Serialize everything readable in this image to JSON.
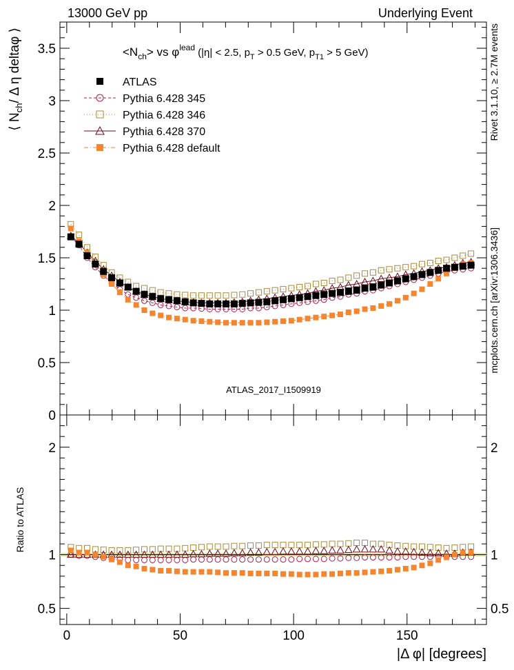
{
  "header": {
    "left": "13000 GeV pp",
    "right": "Underlying Event"
  },
  "side": {
    "rivet": "Rivet 3.1.10, ≥ 2.7M events",
    "mcplots": "mcplots.cern.ch [arXiv:1306.3436]"
  },
  "watermark": "ATLAS_2017_I1509919",
  "chart_data": [
    {
      "type": "scatter",
      "title": "<N_ch> vs φ^lead (|η| < 2.5, p_T > 0.5 GeV, p_T1 > 5 GeV)",
      "title_parts": {
        "a": "<N",
        "a_sub": "ch",
        "b": "> vs φ",
        "b_sup": "lead",
        "c": " (|η| < 2.5, p",
        "c_sub": "T",
        "d": " > 0.5 GeV, p",
        "d_sub": "T1",
        "e": " > 5 GeV)"
      },
      "ylabel": "⟨ N_ch / Δ η deltaφ ⟩",
      "ylabel_parts": {
        "a": "⟨ N",
        "a_sub": "ch",
        "b": "/ Δ η deltaφ ⟩"
      },
      "xlim": [
        -3,
        185
      ],
      "ylim": [
        0,
        3.75
      ],
      "y_ticks": [
        "0",
        "0.5",
        "1",
        "1.5",
        "2",
        "2.5",
        "3",
        "3.5"
      ],
      "y_tick_values": [
        0,
        0.5,
        1,
        1.5,
        2,
        2.5,
        3,
        3.5
      ],
      "legend_position": "top-left",
      "x": [
        1.8,
        5.4,
        9.0,
        12.6,
        16.2,
        19.8,
        23.4,
        27.0,
        30.6,
        34.2,
        37.8,
        41.4,
        45.0,
        48.6,
        52.2,
        55.8,
        59.4,
        63.0,
        66.6,
        70.2,
        73.8,
        77.4,
        81.0,
        84.6,
        88.2,
        91.8,
        95.4,
        99.0,
        102.6,
        106.2,
        109.8,
        113.4,
        117.0,
        120.6,
        124.2,
        127.8,
        131.4,
        135.0,
        138.6,
        142.2,
        145.8,
        149.4,
        153.0,
        156.6,
        160.2,
        163.8,
        167.4,
        171.0,
        174.6,
        178.2
      ],
      "series": [
        {
          "name": "ATLAS",
          "color": "#000000",
          "marker": "filled-square",
          "values": [
            1.7,
            1.63,
            1.52,
            1.44,
            1.37,
            1.31,
            1.26,
            1.22,
            1.18,
            1.15,
            1.13,
            1.11,
            1.1,
            1.09,
            1.08,
            1.07,
            1.065,
            1.06,
            1.06,
            1.06,
            1.06,
            1.065,
            1.07,
            1.075,
            1.08,
            1.09,
            1.1,
            1.11,
            1.12,
            1.13,
            1.14,
            1.15,
            1.16,
            1.17,
            1.18,
            1.19,
            1.21,
            1.22,
            1.24,
            1.26,
            1.28,
            1.3,
            1.32,
            1.34,
            1.36,
            1.38,
            1.4,
            1.41,
            1.42,
            1.43
          ]
        },
        {
          "name": "Pythia 6.428 345",
          "color": "#b41e4a",
          "marker": "open-circle",
          "line": "dashed",
          "values": [
            1.7,
            1.62,
            1.5,
            1.41,
            1.33,
            1.26,
            1.2,
            1.15,
            1.12,
            1.09,
            1.07,
            1.05,
            1.04,
            1.03,
            1.02,
            1.02,
            1.015,
            1.01,
            1.01,
            1.01,
            1.01,
            1.01,
            1.02,
            1.02,
            1.03,
            1.04,
            1.05,
            1.06,
            1.07,
            1.08,
            1.09,
            1.1,
            1.12,
            1.13,
            1.15,
            1.16,
            1.18,
            1.19,
            1.21,
            1.23,
            1.25,
            1.27,
            1.29,
            1.31,
            1.33,
            1.35,
            1.37,
            1.38,
            1.39,
            1.4
          ]
        },
        {
          "name": "Pythia 6.428 346",
          "color": "#a88a3c",
          "marker": "open-square",
          "line": "dotted",
          "values": [
            1.82,
            1.72,
            1.6,
            1.51,
            1.43,
            1.36,
            1.31,
            1.27,
            1.23,
            1.21,
            1.19,
            1.17,
            1.16,
            1.15,
            1.145,
            1.14,
            1.14,
            1.14,
            1.14,
            1.14,
            1.145,
            1.15,
            1.16,
            1.17,
            1.18,
            1.19,
            1.2,
            1.21,
            1.22,
            1.23,
            1.25,
            1.26,
            1.28,
            1.29,
            1.31,
            1.33,
            1.35,
            1.36,
            1.38,
            1.39,
            1.4,
            1.41,
            1.42,
            1.44,
            1.45,
            1.47,
            1.48,
            1.5,
            1.52,
            1.54
          ]
        },
        {
          "name": "Pythia 6.428 370",
          "color": "#6e0a1e",
          "marker": "open-triangle",
          "line": "solid",
          "values": [
            1.71,
            1.64,
            1.55,
            1.47,
            1.39,
            1.33,
            1.27,
            1.22,
            1.18,
            1.15,
            1.13,
            1.11,
            1.1,
            1.09,
            1.08,
            1.075,
            1.07,
            1.07,
            1.07,
            1.07,
            1.075,
            1.08,
            1.09,
            1.1,
            1.11,
            1.12,
            1.13,
            1.14,
            1.15,
            1.16,
            1.18,
            1.19,
            1.21,
            1.22,
            1.24,
            1.25,
            1.27,
            1.28,
            1.3,
            1.31,
            1.32,
            1.34,
            1.35,
            1.37,
            1.38,
            1.4,
            1.41,
            1.43,
            1.45,
            1.46
          ]
        },
        {
          "name": "Pythia 6.428 default",
          "color": "#f58630",
          "marker": "filled-square",
          "line": "dash-dot",
          "values": [
            1.78,
            1.66,
            1.55,
            1.44,
            1.34,
            1.25,
            1.17,
            1.1,
            1.05,
            1.0,
            0.97,
            0.95,
            0.93,
            0.92,
            0.91,
            0.9,
            0.895,
            0.89,
            0.885,
            0.88,
            0.88,
            0.88,
            0.88,
            0.88,
            0.885,
            0.89,
            0.895,
            0.9,
            0.91,
            0.92,
            0.93,
            0.94,
            0.95,
            0.96,
            0.98,
            0.99,
            1.01,
            1.02,
            1.04,
            1.06,
            1.09,
            1.12,
            1.16,
            1.2,
            1.25,
            1.3,
            1.35,
            1.4,
            1.44,
            1.45
          ]
        }
      ]
    },
    {
      "type": "scatter",
      "title": "",
      "xlabel": "|Δ φ| [degrees]",
      "ylabel": "Ratio to ATLAS",
      "xlim": [
        -3,
        185
      ],
      "ylim": [
        0.35,
        2.3
      ],
      "x_ticks": [
        "0",
        "50",
        "100",
        "150"
      ],
      "x_tick_values": [
        0,
        50,
        100,
        150
      ],
      "y_ticks": [
        "0.5",
        "1",
        "2"
      ],
      "y_tick_values": [
        0.5,
        1,
        2
      ],
      "band": {
        "low": 0.985,
        "high": 1.015,
        "color": "#e0e0a0"
      },
      "series": [
        {
          "name": "Pythia 6.428 345",
          "color": "#b41e4a",
          "marker": "open-circle",
          "values": [
            1.0,
            0.99,
            0.99,
            0.98,
            0.97,
            0.96,
            0.955,
            0.95,
            0.95,
            0.95,
            0.95,
            0.95,
            0.95,
            0.95,
            0.95,
            0.955,
            0.955,
            0.955,
            0.955,
            0.955,
            0.955,
            0.955,
            0.955,
            0.955,
            0.955,
            0.955,
            0.955,
            0.955,
            0.96,
            0.96,
            0.96,
            0.96,
            0.965,
            0.965,
            0.97,
            0.97,
            0.975,
            0.975,
            0.975,
            0.975,
            0.975,
            0.98,
            0.98,
            0.98,
            0.98,
            0.98,
            0.98,
            0.98,
            0.98,
            0.98
          ]
        },
        {
          "name": "Pythia 6.428 346",
          "color": "#a88a3c",
          "marker": "open-square",
          "values": [
            1.07,
            1.06,
            1.06,
            1.05,
            1.045,
            1.04,
            1.04,
            1.04,
            1.045,
            1.05,
            1.05,
            1.055,
            1.055,
            1.055,
            1.06,
            1.065,
            1.07,
            1.075,
            1.075,
            1.075,
            1.08,
            1.08,
            1.085,
            1.085,
            1.09,
            1.09,
            1.09,
            1.09,
            1.09,
            1.09,
            1.095,
            1.095,
            1.1,
            1.1,
            1.105,
            1.11,
            1.11,
            1.1,
            1.1,
            1.09,
            1.085,
            1.08,
            1.075,
            1.075,
            1.07,
            1.065,
            1.06,
            1.065,
            1.07,
            1.075
          ]
        },
        {
          "name": "Pythia 6.428 370",
          "color": "#6e0a1e",
          "marker": "open-triangle",
          "values": [
            1.0,
            1.0,
            1.0,
            1.0,
            1.0,
            1.0,
            1.0,
            1.0,
            1.0,
            1.0,
            1.0,
            1.0,
            1.0,
            1.0,
            1.0,
            1.005,
            1.005,
            1.01,
            1.01,
            1.01,
            1.015,
            1.015,
            1.02,
            1.02,
            1.025,
            1.025,
            1.03,
            1.03,
            1.03,
            1.03,
            1.035,
            1.035,
            1.04,
            1.04,
            1.045,
            1.05,
            1.05,
            1.05,
            1.05,
            1.04,
            1.03,
            1.03,
            1.025,
            1.02,
            1.015,
            1.015,
            1.01,
            1.01,
            1.02,
            1.02
          ]
        },
        {
          "name": "Pythia 6.428 default",
          "color": "#f58630",
          "marker": "filled-square",
          "values": [
            1.04,
            1.02,
            1.02,
            1.0,
            0.98,
            0.955,
            0.93,
            0.9,
            0.89,
            0.87,
            0.86,
            0.85,
            0.85,
            0.845,
            0.84,
            0.84,
            0.84,
            0.84,
            0.835,
            0.83,
            0.83,
            0.83,
            0.825,
            0.825,
            0.825,
            0.825,
            0.82,
            0.82,
            0.815,
            0.815,
            0.815,
            0.82,
            0.82,
            0.825,
            0.83,
            0.83,
            0.835,
            0.84,
            0.845,
            0.85,
            0.86,
            0.87,
            0.88,
            0.9,
            0.92,
            0.95,
            0.975,
            1.0,
            1.02,
            1.02
          ]
        }
      ]
    }
  ]
}
